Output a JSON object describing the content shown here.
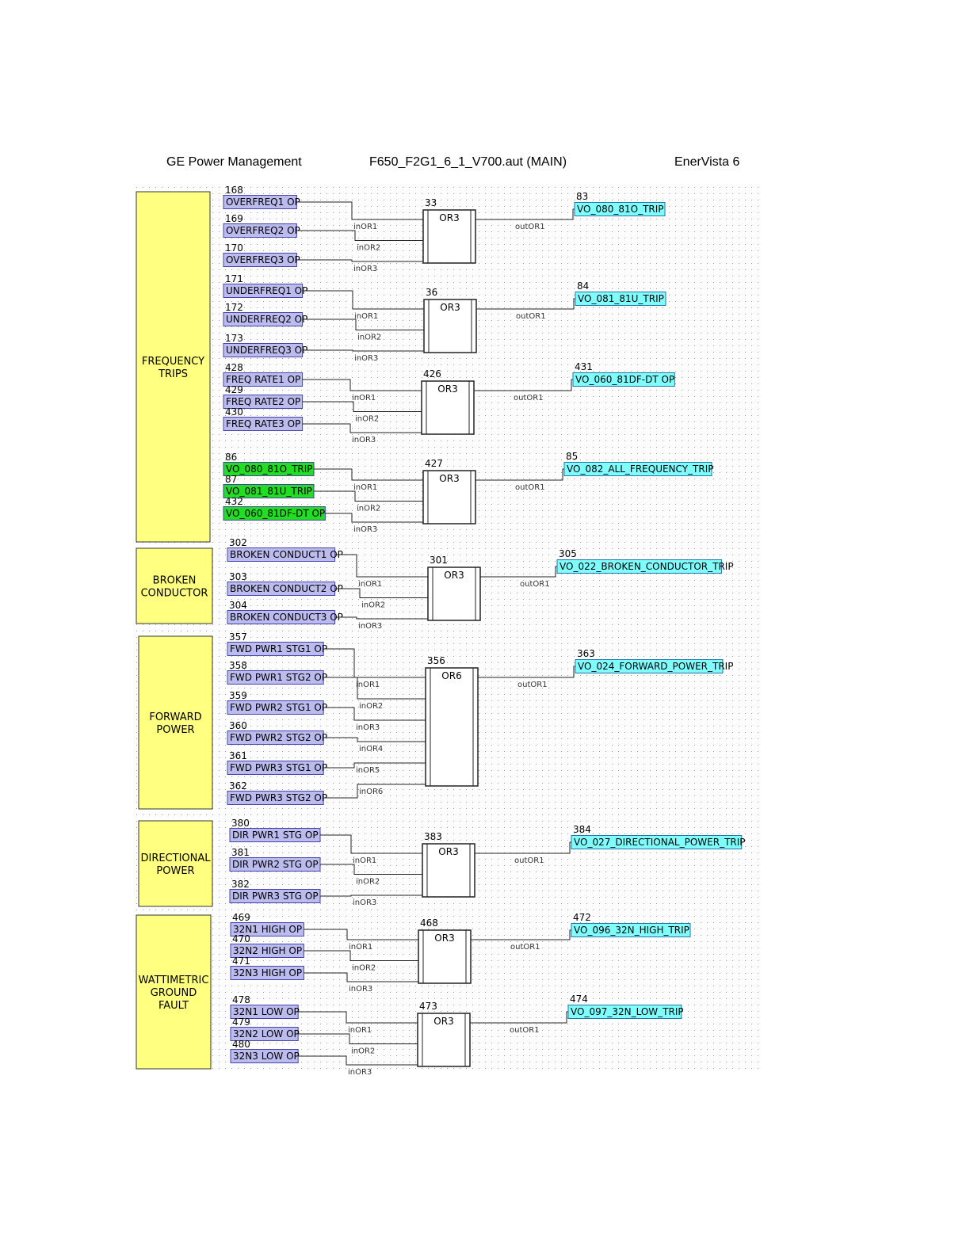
{
  "header": {
    "left": "GE Power Management",
    "center": "F650_F2G1_6_1_V700.aut (MAIN)",
    "right": "EnerVista 6"
  },
  "colors": {
    "section": "#ffff80",
    "input": "#bbbbee",
    "output": "#80ffff",
    "green_input": "#22dd22"
  },
  "sections": [
    {
      "label": [
        "FREQUENCY",
        "TRIPS"
      ]
    },
    {
      "label": [
        "BROKEN",
        "CONDUCTOR"
      ]
    },
    {
      "label": [
        "FORWARD",
        "POWER"
      ]
    },
    {
      "label": [
        "DIRECTIONAL",
        "POWER"
      ]
    },
    {
      "label": [
        "WATTIMETRIC",
        "GROUND",
        "FAULT"
      ]
    }
  ],
  "blocks": [
    {
      "id": "33",
      "type": "OR3",
      "inputs": [
        {
          "id": "168",
          "label": "OVERFREQ1 OP"
        },
        {
          "id": "169",
          "label": "OVERFREQ2 OP"
        },
        {
          "id": "170",
          "label": "OVERFREQ3 OP"
        }
      ],
      "pins": [
        "inOR1",
        "inOR2",
        "inOR3"
      ],
      "output": {
        "pin": "outOR1",
        "id": "83",
        "label": "VO_080_81O_TRIP"
      }
    },
    {
      "id": "36",
      "type": "OR3",
      "inputs": [
        {
          "id": "171",
          "label": "UNDERFREQ1 OP"
        },
        {
          "id": "172",
          "label": "UNDERFREQ2 OP"
        },
        {
          "id": "173",
          "label": "UNDERFREQ3 OP"
        }
      ],
      "pins": [
        "inOR1",
        "inOR2",
        "inOR3"
      ],
      "output": {
        "pin": "outOR1",
        "id": "84",
        "label": "VO_081_81U_TRIP"
      }
    },
    {
      "id": "426",
      "type": "OR3",
      "inputs": [
        {
          "id": "428",
          "label": "FREQ RATE1 OP"
        },
        {
          "id": "429",
          "label": "FREQ RATE2 OP"
        },
        {
          "id": "430",
          "label": "FREQ RATE3 OP"
        }
      ],
      "pins": [
        "inOR1",
        "inOR2",
        "inOR3"
      ],
      "output": {
        "pin": "outOR1",
        "id": "431",
        "label": "VO_060_81DF-DT OP"
      }
    },
    {
      "id": "427",
      "type": "OR3",
      "inputs": [
        {
          "id": "86",
          "label": "VO_080_81O_TRIP"
        },
        {
          "id": "87",
          "label": "VO_081_81U_TRIP"
        },
        {
          "id": "432",
          "label": "VO_060_81DF-DT OP"
        }
      ],
      "pins": [
        "inOR1",
        "inOR2",
        "inOR3"
      ],
      "output": {
        "pin": "outOR1",
        "id": "85",
        "label": "VO_082_ALL_FREQUENCY_TRIP"
      }
    },
    {
      "id": "301",
      "type": "OR3",
      "inputs": [
        {
          "id": "302",
          "label": "BROKEN CONDUCT1 OP"
        },
        {
          "id": "303",
          "label": "BROKEN CONDUCT2 OP"
        },
        {
          "id": "304",
          "label": "BROKEN CONDUCT3 OP"
        }
      ],
      "pins": [
        "inOR1",
        "inOR2",
        "inOR3"
      ],
      "output": {
        "pin": "outOR1",
        "id": "305",
        "label": "VO_022_BROKEN_CONDUCTOR_TRIP"
      }
    },
    {
      "id": "356",
      "type": "OR6",
      "inputs": [
        {
          "id": "357",
          "label": "FWD PWR1 STG1 OP"
        },
        {
          "id": "358",
          "label": "FWD PWR1 STG2 OP"
        },
        {
          "id": "359",
          "label": "FWD PWR2 STG1 OP"
        },
        {
          "id": "360",
          "label": "FWD PWR2 STG2 OP"
        },
        {
          "id": "361",
          "label": "FWD PWR3 STG1 OP"
        },
        {
          "id": "362",
          "label": "FWD PWR3 STG2 OP"
        }
      ],
      "pins": [
        "inOR1",
        "inOR2",
        "inOR3",
        "inOR4",
        "inOR5",
        "inOR6"
      ],
      "output": {
        "pin": "outOR1",
        "id": "363",
        "label": "VO_024_FORWARD_POWER_TRIP"
      }
    },
    {
      "id": "383",
      "type": "OR3",
      "inputs": [
        {
          "id": "380",
          "label": "DIR PWR1 STG OP"
        },
        {
          "id": "381",
          "label": "DIR PWR2 STG OP"
        },
        {
          "id": "382",
          "label": "DIR PWR3 STG OP"
        }
      ],
      "pins": [
        "inOR1",
        "inOR2",
        "inOR3"
      ],
      "output": {
        "pin": "outOR1",
        "id": "384",
        "label": "VO_027_DIRECTIONAL_POWER_TRIP"
      }
    },
    {
      "id": "468",
      "type": "OR3",
      "inputs": [
        {
          "id": "469",
          "label": "32N1 HIGH OP"
        },
        {
          "id": "470",
          "label": "32N2 HIGH OP"
        },
        {
          "id": "471",
          "label": "32N3 HIGH OP"
        }
      ],
      "pins": [
        "inOR1",
        "inOR2",
        "inOR3"
      ],
      "output": {
        "pin": "outOR1",
        "id": "472",
        "label": "VO_096_32N_HIGH_TRIP"
      }
    },
    {
      "id": "473",
      "type": "OR3",
      "inputs": [
        {
          "id": "478",
          "label": "32N1 LOW OP"
        },
        {
          "id": "479",
          "label": "32N2 LOW OP"
        },
        {
          "id": "480",
          "label": "32N3 LOW OP"
        }
      ],
      "pins": [
        "inOR1",
        "inOR2",
        "inOR3"
      ],
      "output": {
        "pin": "outOR1",
        "id": "474",
        "label": "VO_097_32N_LOW_TRIP"
      }
    }
  ]
}
